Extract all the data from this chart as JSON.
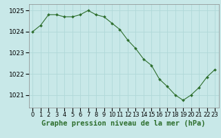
{
  "x": [
    0,
    1,
    2,
    3,
    4,
    5,
    6,
    7,
    8,
    9,
    10,
    11,
    12,
    13,
    14,
    15,
    16,
    17,
    18,
    19,
    20,
    21,
    22,
    23
  ],
  "y": [
    1024.0,
    1024.3,
    1024.8,
    1024.8,
    1024.7,
    1024.7,
    1024.8,
    1025.0,
    1024.8,
    1024.7,
    1024.4,
    1024.1,
    1023.6,
    1023.2,
    1022.7,
    1022.4,
    1021.75,
    1021.4,
    1021.0,
    1020.75,
    1021.0,
    1021.35,
    1021.85,
    1022.2
  ],
  "line_color": "#2d6e2d",
  "marker_color": "#2d6e2d",
  "bg_color": "#c8e8e8",
  "grid_color": "#b0d8d8",
  "title": "Graphe pression niveau de la mer (hPa)",
  "ylim": [
    1020.4,
    1025.3
  ],
  "xlim": [
    -0.5,
    23.5
  ],
  "yticks": [
    1021,
    1022,
    1023,
    1024,
    1025
  ],
  "xtick_labels": [
    "0",
    "1",
    "2",
    "3",
    "4",
    "5",
    "6",
    "7",
    "8",
    "9",
    "10",
    "11",
    "12",
    "13",
    "14",
    "15",
    "16",
    "17",
    "18",
    "19",
    "20",
    "21",
    "22",
    "23"
  ],
  "title_fontsize": 7.5,
  "tick_fontsize": 6.5,
  "border_color": "#888888"
}
